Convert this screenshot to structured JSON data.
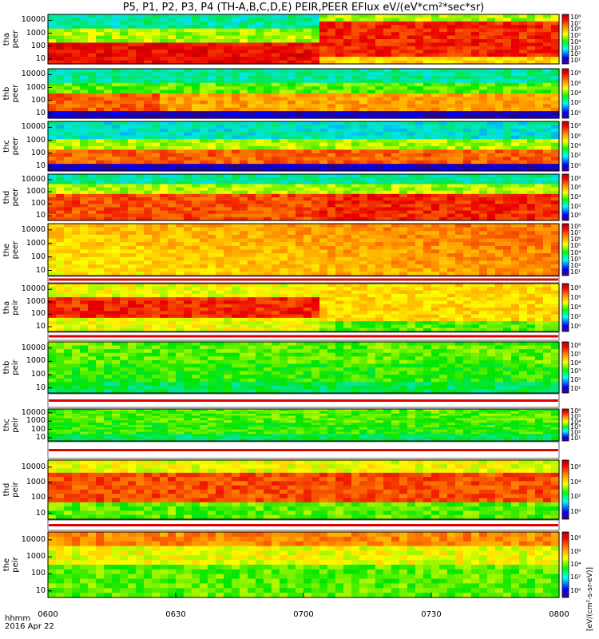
{
  "chart_data": {
    "type": "heatmap",
    "title": "P5, P1, P2, P3, P4 (TH-A,B,C,D,E) PEIR,PEER EFlux eV/(eV*cm²*sec*sr)",
    "x_ticks": [
      "0600",
      "0630",
      "0700",
      "0730",
      "0800"
    ],
    "x_range": [
      "0600",
      "0800"
    ],
    "x_label_top": "hhmm",
    "x_label_bottom": "2016 Apr 22",
    "y_ticks": [
      "10000",
      "1000",
      "100",
      "10"
    ],
    "y_scale": "log",
    "colorbar_label": "[eV/(cm²-s-sr-eV)]",
    "panels": [
      {
        "probe": "tha",
        "species": "peer",
        "cb_ticks": [
          "10⁸",
          "10⁷",
          "10⁶",
          "10⁵",
          "10⁴",
          "10³",
          "10²",
          "10¹"
        ]
      },
      {
        "probe": "thb",
        "species": "peer",
        "cb_ticks": [
          "10⁸",
          "10⁶",
          "10⁴",
          "10²",
          "10⁰"
        ]
      },
      {
        "probe": "thc",
        "species": "peer",
        "cb_ticks": [
          "10⁸",
          "10⁶",
          "10⁴",
          "10²",
          "10⁰"
        ]
      },
      {
        "probe": "thd",
        "species": "peer",
        "cb_ticks": [
          "10⁸",
          "10⁶",
          "10⁴",
          "10²",
          "10⁰"
        ]
      },
      {
        "probe": "the",
        "species": "peer",
        "cb_ticks": [
          "10⁸",
          "10⁷",
          "10⁶",
          "10⁵",
          "10⁴",
          "10³",
          "10²",
          "10¹"
        ]
      },
      {
        "probe": "tha",
        "species": "peir",
        "cb_ticks": [
          "10⁸",
          "10⁶",
          "10⁴",
          "10²",
          "10⁰"
        ]
      },
      {
        "probe": "thb",
        "species": "peir",
        "cb_ticks": [
          "10⁶",
          "10⁵",
          "10⁴",
          "10³",
          "10²",
          "10¹"
        ]
      },
      {
        "probe": "thc",
        "species": "peir",
        "cb_ticks": [
          "10⁶",
          "10⁵",
          "10⁴",
          "10³",
          "10²",
          "10¹"
        ]
      },
      {
        "probe": "thd",
        "species": "peir",
        "cb_ticks": [
          "10⁶",
          "10⁴",
          "10²",
          "10⁰"
        ]
      },
      {
        "probe": "the",
        "species": "peir",
        "cb_ticks": [
          "10⁸",
          "10⁶",
          "10⁴",
          "10²",
          "10⁰"
        ]
      }
    ]
  }
}
